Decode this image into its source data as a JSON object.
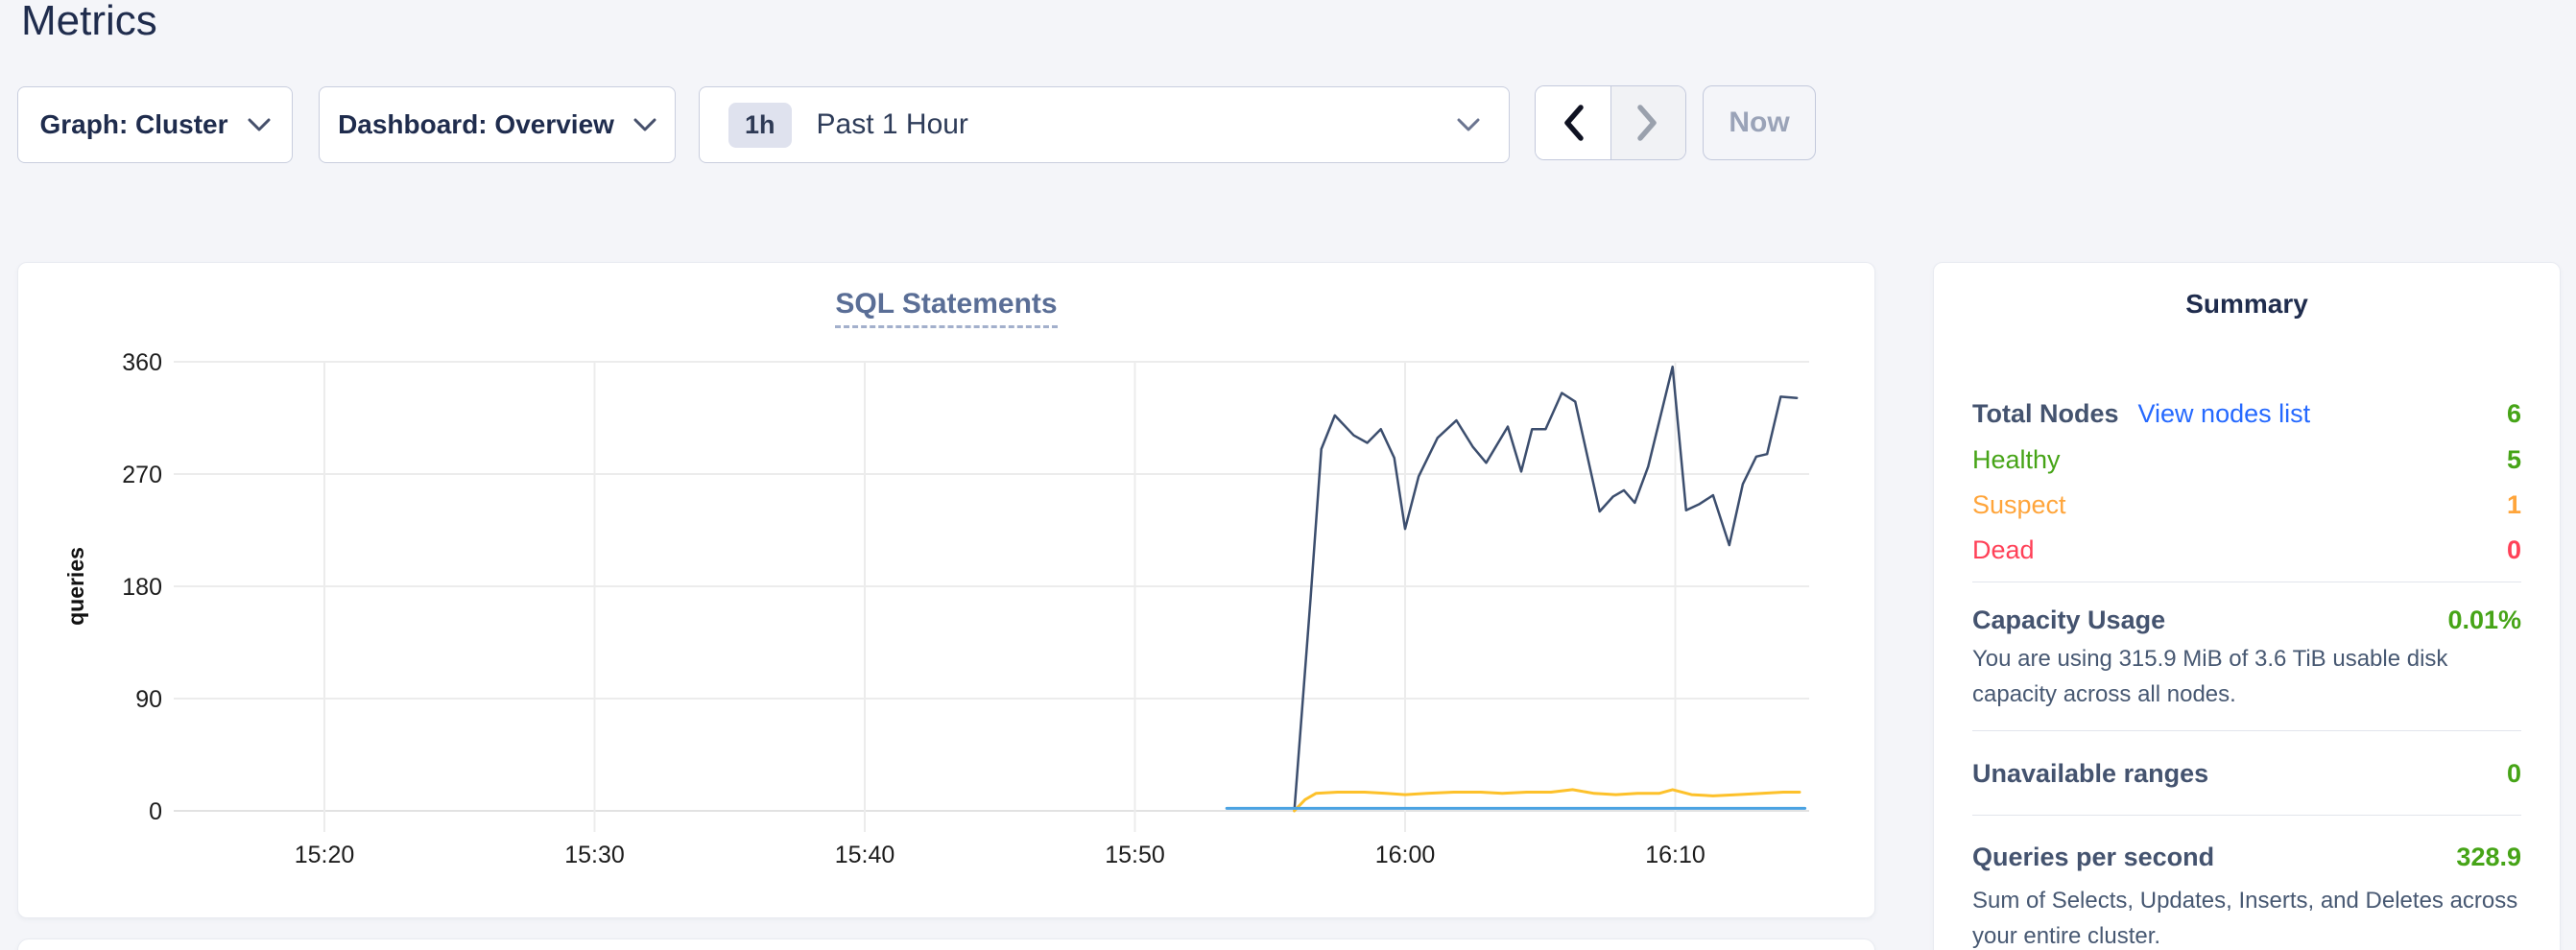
{
  "page": {
    "title": "Metrics",
    "colors": {
      "page_background": "#f4f5f9",
      "link_blue": "#2569ff",
      "green": "#46a417",
      "orange": "#ffa53b",
      "red": "#ff4158",
      "heading": "#1f2c4d"
    }
  },
  "toolbar": {
    "graph_dropdown": {
      "label": "Graph: Cluster",
      "icon": "chevron-down"
    },
    "dashboard_dropdown": {
      "label": "Dashboard: Overview",
      "icon": "chevron-down"
    },
    "time_selector": {
      "badge": "1h",
      "label": "Past 1 Hour",
      "icon": "chevron-down"
    },
    "prev_button": {
      "icon": "chevron-left",
      "enabled": true
    },
    "next_button": {
      "icon": "chevron-right",
      "enabled": false
    },
    "now_button": {
      "label": "Now",
      "enabled": false
    }
  },
  "chart_data": {
    "type": "line",
    "title": "SQL Statements",
    "ylabel": "queries",
    "ylim": [
      0,
      360
    ],
    "yticks": [
      0,
      90,
      180,
      270,
      360
    ],
    "xticks": [
      [
        20,
        "15:20"
      ],
      [
        30,
        "15:30"
      ],
      [
        40,
        "15:40"
      ],
      [
        50,
        "15:50"
      ],
      [
        60,
        "16:00"
      ],
      [
        70,
        "16:10"
      ]
    ],
    "x_axis_unit": "minutes after 15:00",
    "x_range_minutes": [
      14.4,
      74.9
    ],
    "grid": true,
    "legend_position": "none",
    "series": [
      {
        "name": "line-1",
        "color": "#3c4e6e",
        "width": 2.5,
        "points": [
          [
            55.9,
            0
          ],
          [
            56.5,
            170
          ],
          [
            56.9,
            290
          ],
          [
            57.4,
            317
          ],
          [
            58.1,
            301
          ],
          [
            58.6,
            295
          ],
          [
            59.1,
            306
          ],
          [
            59.6,
            283
          ],
          [
            60.0,
            226
          ],
          [
            60.5,
            268
          ],
          [
            61.2,
            299
          ],
          [
            61.9,
            313
          ],
          [
            62.5,
            292
          ],
          [
            63.0,
            279
          ],
          [
            63.8,
            308
          ],
          [
            64.3,
            272
          ],
          [
            64.7,
            306
          ],
          [
            65.2,
            306
          ],
          [
            65.8,
            335
          ],
          [
            66.3,
            328
          ],
          [
            67.2,
            240
          ],
          [
            67.7,
            252
          ],
          [
            68.1,
            257
          ],
          [
            68.5,
            247
          ],
          [
            69.0,
            276
          ],
          [
            69.9,
            356
          ],
          [
            70.4,
            241
          ],
          [
            70.9,
            246
          ],
          [
            71.4,
            253
          ],
          [
            72.0,
            213
          ],
          [
            72.5,
            262
          ],
          [
            73.0,
            284
          ],
          [
            73.4,
            286
          ],
          [
            73.9,
            332
          ],
          [
            74.5,
            331
          ]
        ]
      },
      {
        "name": "line-2",
        "color": "#fdc12b",
        "width": 3,
        "points": [
          [
            55.9,
            0
          ],
          [
            56.3,
            9
          ],
          [
            56.7,
            14
          ],
          [
            57.5,
            15
          ],
          [
            58.5,
            15
          ],
          [
            59.3,
            14
          ],
          [
            60.0,
            13
          ],
          [
            60.8,
            14
          ],
          [
            61.8,
            15
          ],
          [
            62.8,
            15
          ],
          [
            63.6,
            14
          ],
          [
            64.5,
            15
          ],
          [
            65.4,
            15
          ],
          [
            66.2,
            17
          ],
          [
            67.0,
            14
          ],
          [
            67.8,
            13
          ],
          [
            68.6,
            14
          ],
          [
            69.4,
            14
          ],
          [
            69.9,
            17
          ],
          [
            70.6,
            13
          ],
          [
            71.4,
            12
          ],
          [
            72.3,
            13
          ],
          [
            73.2,
            14
          ],
          [
            74.0,
            15
          ],
          [
            74.6,
            15
          ]
        ]
      },
      {
        "name": "line-3",
        "color": "#4ba3e2",
        "width": 3,
        "points": [
          [
            53.4,
            2
          ],
          [
            74.8,
            2
          ]
        ]
      }
    ]
  },
  "summary": {
    "title": "Summary",
    "total_nodes": {
      "label": "Total Nodes",
      "link": "View nodes list",
      "value": "6"
    },
    "healthy": {
      "label": "Healthy",
      "value": "5"
    },
    "suspect": {
      "label": "Suspect",
      "value": "1"
    },
    "dead": {
      "label": "Dead",
      "value": "0"
    },
    "capacity": {
      "label": "Capacity Usage",
      "value": "0.01%",
      "description": "You are using 315.9 MiB of 3.6 TiB usable disk capacity across all nodes."
    },
    "unavailable_ranges": {
      "label": "Unavailable ranges",
      "value": "0"
    },
    "qps": {
      "label": "Queries per second",
      "value": "328.9",
      "description": "Sum of Selects, Updates, Inserts, and Deletes across your entire cluster."
    }
  }
}
